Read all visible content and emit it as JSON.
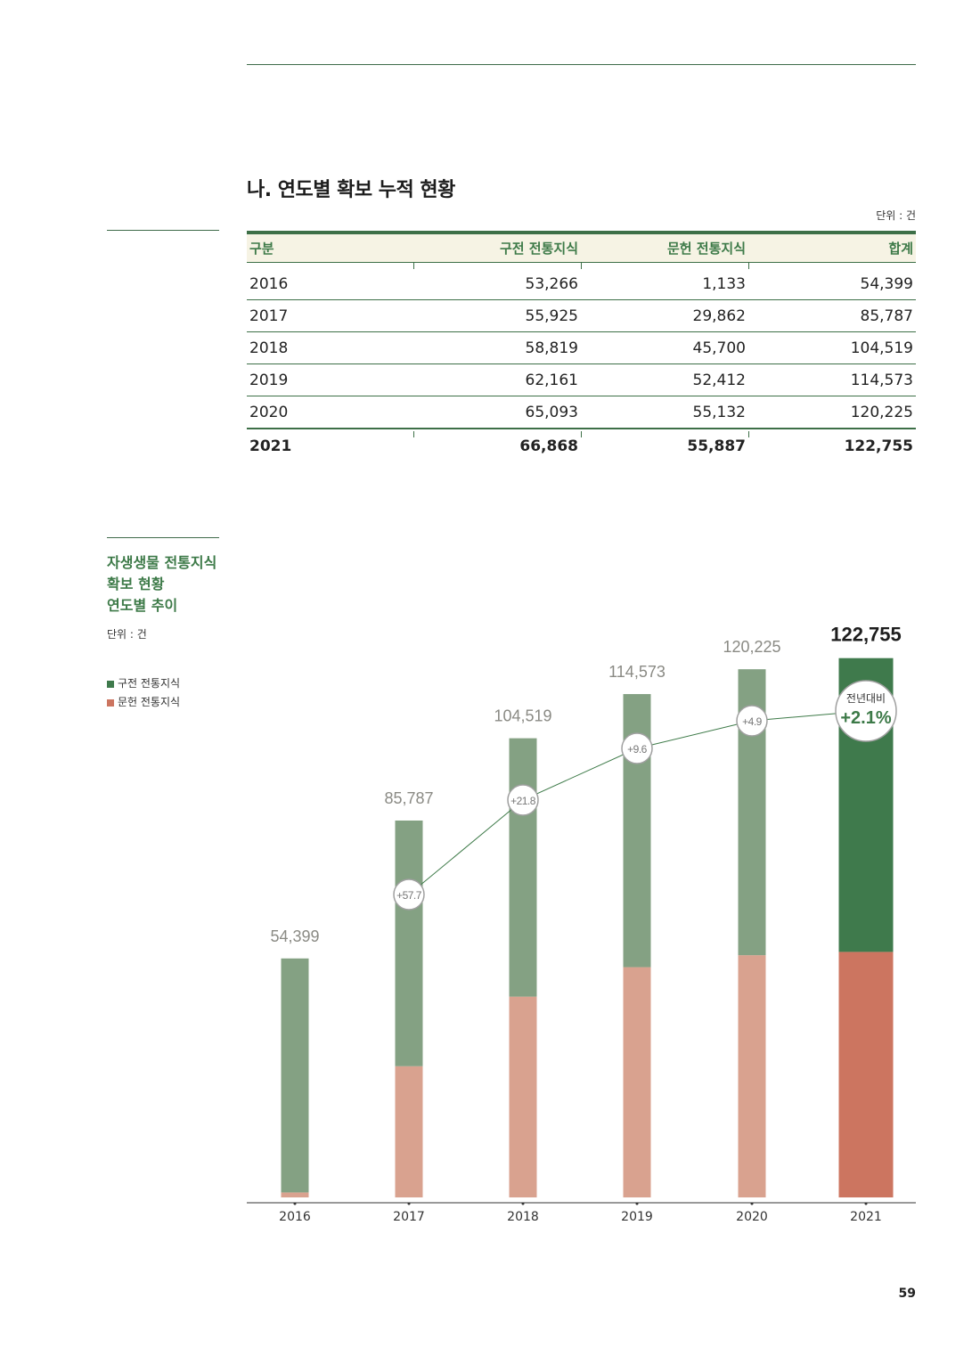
{
  "section_title": "나. 연도별 확보 누적 현황",
  "unit_label": "단위 : 건",
  "table": {
    "headers": [
      "구분",
      "구전 전통지식",
      "문헌 전통지식",
      "합계"
    ],
    "rows": [
      [
        "2016",
        "53,266",
        "1,133",
        "54,399"
      ],
      [
        "2017",
        "55,925",
        "29,862",
        "85,787"
      ],
      [
        "2018",
        "58,819",
        "45,700",
        "104,519"
      ],
      [
        "2019",
        "62,161",
        "52,412",
        "114,573"
      ],
      [
        "2020",
        "65,093",
        "55,132",
        "120,225"
      ]
    ],
    "total_row": [
      "2021",
      "66,868",
      "55,887",
      "122,755"
    ]
  },
  "chart_panel": {
    "title_lines": [
      "자생생물 전통지식",
      "확보 현황",
      "연도별 추이"
    ],
    "unit": "단위 : 건",
    "legend": [
      {
        "label": "구전 전통지식",
        "color": "#3f7a4c"
      },
      {
        "label": "문헌 전통지식",
        "color": "#cc7560"
      }
    ]
  },
  "chart_data": {
    "type": "bar",
    "stacked": true,
    "categories": [
      "2016",
      "2017",
      "2018",
      "2019",
      "2020",
      "2021"
    ],
    "series": [
      {
        "name": "문헌 전통지식",
        "values": [
          1133,
          29862,
          45700,
          52412,
          55132,
          55887
        ]
      },
      {
        "name": "구전 전통지식",
        "values": [
          53266,
          55925,
          58819,
          62161,
          65093,
          66868
        ]
      }
    ],
    "totals": [
      54399,
      85787,
      104519,
      114573,
      120225,
      122755
    ],
    "total_labels": [
      "54,399",
      "85,787",
      "104,519",
      "114,573",
      "120,225",
      "122,755"
    ],
    "growth_labels": [
      "+57.7",
      "+21.8",
      "+9.6",
      "+4.9"
    ],
    "final_growth": {
      "caption": "전년대비",
      "value": "+2.1%"
    },
    "colors": {
      "oral": "#84a183",
      "literature": "#d9a28f",
      "oral_highlight": "#3f7a4c",
      "literature_highlight": "#cc7560",
      "line": "#3d7a48"
    },
    "ylim": [
      0,
      130000
    ]
  },
  "page_number": "59"
}
